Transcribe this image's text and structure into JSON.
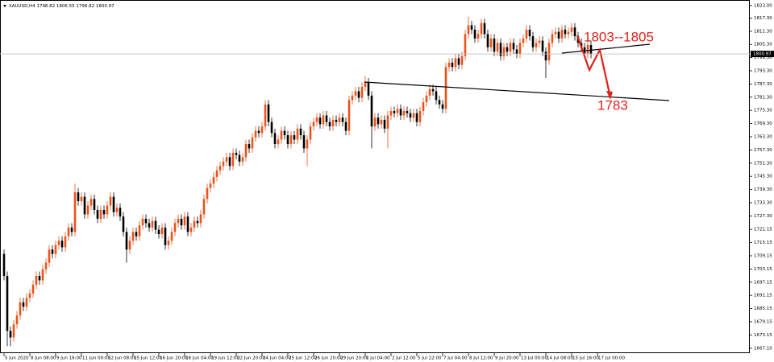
{
  "chart_data": {
    "type": "candlestick",
    "title": "XAUUSD,H4  1798.82 1806.55 1798.82 1800.97",
    "categories": [
      "5 Jun 2020",
      null,
      null,
      null,
      null,
      null,
      null,
      null,
      "8 Jun 08:00",
      null,
      null,
      null,
      null,
      null,
      null,
      null,
      "9 Jun 16:00",
      null,
      null,
      null,
      null,
      null,
      null,
      null,
      "11 Jun 00:00",
      null,
      null,
      null,
      null,
      null,
      null,
      null,
      "12 Jun 08:00",
      null,
      null,
      null,
      null,
      null,
      null,
      null,
      "15 Jun 12:00",
      null,
      null,
      null,
      null,
      null,
      null,
      null,
      "16 Jun 20:00",
      null,
      null,
      null,
      null,
      null,
      null,
      null,
      "18 Jun 04:00",
      null,
      null,
      null,
      null,
      null,
      null,
      null,
      "19 Jun 12:00",
      null,
      null,
      null,
      null,
      null,
      null,
      null,
      "22 Jun 20:00",
      null,
      null,
      null,
      null,
      null,
      null,
      null,
      "24 Jun 04:00",
      null,
      null,
      null,
      null,
      null,
      null,
      null,
      "25 Jun 12:00",
      null,
      null,
      null,
      null,
      null,
      null,
      null,
      "26 Jun 20:00",
      null,
      null,
      null,
      null,
      null,
      null,
      null,
      "29 Jun 20:00",
      null,
      null,
      null,
      null,
      null,
      null,
      null,
      "1 Jul 04:00",
      null,
      null,
      null,
      null,
      null,
      null,
      null,
      "2 Jul 12:00",
      null,
      null,
      null,
      null,
      null,
      null,
      null,
      "5 Jul 22:00",
      null,
      null,
      null,
      null,
      null,
      null,
      null,
      "7 Jul 04:00",
      null,
      null,
      null,
      null,
      null,
      null,
      null,
      "8 Jul 12:00",
      null,
      null,
      null,
      null,
      null,
      null,
      null,
      "9 Jul 20:00",
      null,
      null,
      null,
      null,
      null,
      null,
      null,
      "13 Jul 00:00",
      null,
      null,
      null,
      null,
      null,
      null,
      null,
      "14 Jul 08:00",
      null,
      null,
      null,
      null,
      null,
      null,
      null,
      "15 Jul 16:00",
      null,
      null,
      null,
      null,
      null,
      null,
      null,
      "17 Jul 00:00"
    ],
    "open": [
      1710,
      1700,
      1675,
      1672,
      1678,
      1682,
      1688,
      1686,
      1690,
      1692,
      1696,
      1700,
      1698,
      1703,
      1706,
      1712,
      1710,
      1714,
      1716,
      1713,
      1718,
      1722,
      1720,
      1738,
      1734,
      1736,
      1728,
      1732,
      1735,
      1730,
      1726,
      1730,
      1728,
      1732,
      1736,
      1729,
      1731,
      1727,
      1720,
      1712,
      1716,
      1720,
      1718,
      1723,
      1726,
      1724,
      1722,
      1725,
      1721,
      1719,
      1722,
      1714,
      1716,
      1720,
      1724,
      1726,
      1723,
      1727,
      1720,
      1722,
      1725,
      1724,
      1728,
      1735,
      1740,
      1742,
      1745,
      1748,
      1750,
      1752,
      1754,
      1750,
      1756,
      1755,
      1752,
      1754,
      1760,
      1758,
      1763,
      1766,
      1765,
      1768,
      1778,
      1770,
      1765,
      1760,
      1762,
      1766,
      1764,
      1760,
      1764,
      1762,
      1767,
      1764,
      1758,
      1762,
      1768,
      1770,
      1772,
      1769,
      1773,
      1770,
      1768,
      1771,
      1770,
      1772,
      1770,
      1766,
      1780,
      1782,
      1784,
      1781,
      1786,
      1788,
      1782,
      1768,
      1772,
      1769,
      1771,
      1767,
      1773,
      1775,
      1774,
      1776,
      1773,
      1775,
      1774,
      1772,
      1774,
      1770,
      1775,
      1779,
      1782,
      1785,
      1784,
      1780,
      1778,
      1776,
      1795,
      1797,
      1795,
      1799,
      1796,
      1800,
      1810,
      1814,
      1812,
      1808,
      1810,
      1815,
      1810,
      1804,
      1808,
      1802,
      1806,
      1800,
      1804,
      1802,
      1806,
      1803,
      1801,
      1806,
      1808,
      1812,
      1809,
      1804,
      1806,
      1807,
      1802,
      1798,
      1806,
      1810,
      1811,
      1808,
      1812,
      1810,
      1811,
      1813,
      1809,
      1806,
      1804,
      1801,
      1805,
      null,
      null
    ],
    "high": [
      1712,
      1702,
      1677,
      1680,
      1684,
      1690,
      1690,
      1692,
      1694,
      1698,
      1702,
      1702,
      1705,
      1708,
      1714,
      1714,
      1716,
      1718,
      1718,
      1720,
      1724,
      1724,
      1742,
      1740,
      1738,
      1738,
      1734,
      1737,
      1737,
      1732,
      1732,
      1732,
      1734,
      1738,
      1738,
      1733,
      1733,
      1729,
      1722,
      1718,
      1722,
      1722,
      1725,
      1728,
      1728,
      1726,
      1727,
      1727,
      1723,
      1724,
      1724,
      1718,
      1722,
      1726,
      1728,
      1728,
      1729,
      1729,
      1724,
      1727,
      1727,
      1730,
      1737,
      1742,
      1744,
      1747,
      1750,
      1752,
      1754,
      1756,
      1756,
      1758,
      1758,
      1757,
      1756,
      1762,
      1762,
      1765,
      1768,
      1768,
      1770,
      1780,
      1780,
      1772,
      1767,
      1764,
      1768,
      1768,
      1766,
      1766,
      1766,
      1769,
      1769,
      1766,
      1764,
      1770,
      1772,
      1774,
      1774,
      1775,
      1775,
      1772,
      1773,
      1773,
      1774,
      1774,
      1772,
      1782,
      1784,
      1786,
      1786,
      1788,
      1791,
      1790,
      1784,
      1774,
      1774,
      1773,
      1773,
      1775,
      1777,
      1777,
      1778,
      1778,
      1777,
      1777,
      1776,
      1776,
      1776,
      1777,
      1781,
      1784,
      1787,
      1787,
      1786,
      1782,
      1780,
      1797,
      1799,
      1799,
      1801,
      1801,
      1802,
      1812,
      1818,
      1816,
      1814,
      1812,
      1817,
      1817,
      1812,
      1810,
      1810,
      1808,
      1808,
      1806,
      1806,
      1808,
      1808,
      1805,
      1808,
      1810,
      1814,
      1814,
      1811,
      1808,
      1809,
      1809,
      1804,
      1808,
      1812,
      1813,
      1813,
      1814,
      1814,
      1813,
      1815,
      1815,
      1811,
      1808,
      1806,
      1807,
      1807,
      null,
      null
    ],
    "low": [
      1698,
      1668,
      1668,
      1670,
      1676,
      1680,
      1684,
      1684,
      1688,
      1690,
      1694,
      1696,
      1696,
      1701,
      1704,
      1708,
      1708,
      1712,
      1711,
      1711,
      1716,
      1718,
      1718,
      1732,
      1732,
      1726,
      1726,
      1730,
      1728,
      1724,
      1724,
      1726,
      1726,
      1730,
      1727,
      1727,
      1725,
      1718,
      1706,
      1710,
      1714,
      1716,
      1716,
      1721,
      1722,
      1720,
      1720,
      1719,
      1717,
      1717,
      1712,
      1712,
      1714,
      1718,
      1722,
      1721,
      1721,
      1718,
      1718,
      1720,
      1722,
      1722,
      1726,
      1733,
      1738,
      1740,
      1743,
      1746,
      1748,
      1750,
      1748,
      1748,
      1753,
      1750,
      1750,
      1752,
      1756,
      1756,
      1761,
      1763,
      1763,
      1766,
      1768,
      1763,
      1758,
      1758,
      1760,
      1762,
      1758,
      1758,
      1760,
      1760,
      1762,
      1756,
      1750,
      1760,
      1766,
      1768,
      1767,
      1767,
      1768,
      1766,
      1766,
      1768,
      1768,
      1768,
      1764,
      1764,
      1778,
      1780,
      1779,
      1779,
      1784,
      1780,
      1758,
      1766,
      1767,
      1767,
      1765,
      1758,
      1771,
      1772,
      1772,
      1771,
      1771,
      1772,
      1770,
      1770,
      1768,
      1768,
      1773,
      1777,
      1780,
      1782,
      1778,
      1776,
      1774,
      1774,
      1793,
      1793,
      1793,
      1794,
      1794,
      1798,
      1808,
      1810,
      1806,
      1806,
      1808,
      1808,
      1802,
      1802,
      1800,
      1800,
      1798,
      1798,
      1800,
      1800,
      1801,
      1799,
      1799,
      1804,
      1806,
      1807,
      1802,
      1802,
      1804,
      1800,
      1790,
      1796,
      1804,
      1808,
      1806,
      1806,
      1808,
      1808,
      1809,
      1807,
      1804,
      1802,
      1799,
      1799,
      1799,
      null,
      null
    ],
    "close": [
      1700,
      1675,
      1672,
      1678,
      1682,
      1688,
      1686,
      1690,
      1692,
      1696,
      1700,
      1698,
      1703,
      1706,
      1712,
      1710,
      1714,
      1716,
      1713,
      1718,
      1722,
      1720,
      1738,
      1734,
      1736,
      1728,
      1732,
      1735,
      1730,
      1726,
      1730,
      1728,
      1732,
      1736,
      1729,
      1731,
      1727,
      1720,
      1712,
      1716,
      1720,
      1718,
      1723,
      1726,
      1724,
      1722,
      1725,
      1721,
      1719,
      1722,
      1714,
      1716,
      1720,
      1724,
      1726,
      1723,
      1727,
      1720,
      1722,
      1725,
      1724,
      1728,
      1735,
      1740,
      1742,
      1745,
      1748,
      1750,
      1752,
      1754,
      1750,
      1756,
      1755,
      1752,
      1754,
      1760,
      1758,
      1763,
      1766,
      1765,
      1768,
      1778,
      1770,
      1765,
      1760,
      1762,
      1766,
      1764,
      1760,
      1764,
      1762,
      1767,
      1764,
      1758,
      1762,
      1768,
      1770,
      1772,
      1769,
      1773,
      1770,
      1768,
      1771,
      1770,
      1772,
      1770,
      1766,
      1780,
      1782,
      1784,
      1781,
      1786,
      1788,
      1782,
      1768,
      1772,
      1769,
      1771,
      1767,
      1773,
      1775,
      1774,
      1776,
      1773,
      1775,
      1774,
      1772,
      1774,
      1770,
      1775,
      1779,
      1782,
      1785,
      1784,
      1780,
      1778,
      1776,
      1795,
      1797,
      1795,
      1799,
      1796,
      1800,
      1810,
      1814,
      1812,
      1808,
      1810,
      1815,
      1810,
      1804,
      1808,
      1802,
      1806,
      1800,
      1804,
      1802,
      1806,
      1803,
      1801,
      1806,
      1808,
      1812,
      1809,
      1804,
      1806,
      1807,
      1802,
      1798,
      1806,
      1810,
      1811,
      1808,
      1812,
      1810,
      1811,
      1813,
      1809,
      1806,
      1804,
      1801,
      1805,
      1801,
      null,
      null
    ],
    "up_color": "#e8531c",
    "down_color": "#000000",
    "ylim": [
      1664.5,
      1825.5
    ],
    "yticks": [
      {
        "value": 1823.0,
        "label": "1823.00"
      },
      {
        "value": 1817.3,
        "label": "1817.30"
      },
      {
        "value": 1811.3,
        "label": "1811.30"
      },
      {
        "value": 1805.3,
        "label": "1805.30"
      },
      {
        "value": 1799.3,
        "label": "1799.30"
      },
      {
        "value": 1793.3,
        "label": "1793.30"
      },
      {
        "value": 1787.3,
        "label": "1787.30"
      },
      {
        "value": 1781.3,
        "label": "1781.30"
      },
      {
        "value": 1775.3,
        "label": "1775.30"
      },
      {
        "value": 1769.3,
        "label": "1769.30"
      },
      {
        "value": 1763.3,
        "label": "1763.30"
      },
      {
        "value": 1757.3,
        "label": "1757.30"
      },
      {
        "value": 1751.3,
        "label": "1751.30"
      },
      {
        "value": 1745.3,
        "label": "1745.30"
      },
      {
        "value": 1739.3,
        "label": "1739.30"
      },
      {
        "value": 1733.3,
        "label": "1733.30"
      },
      {
        "value": 1727.3,
        "label": "1727.30"
      },
      {
        "value": 1721.15,
        "label": "1721.15"
      },
      {
        "value": 1715.15,
        "label": "1715.15"
      },
      {
        "value": 1709.15,
        "label": "1709.15"
      },
      {
        "value": 1703.15,
        "label": "1703.15"
      },
      {
        "value": 1697.15,
        "label": "1697.15"
      },
      {
        "value": 1691.15,
        "label": "1691.15"
      },
      {
        "value": 1685.15,
        "label": "1685.15"
      },
      {
        "value": 1679.15,
        "label": "1679.15"
      },
      {
        "value": 1673.15,
        "label": "1673.15"
      },
      {
        "value": 1667.1,
        "label": "1667.10"
      }
    ],
    "current_price": 1800.97,
    "annotations": [
      "1803--1805",
      "1783"
    ]
  }
}
